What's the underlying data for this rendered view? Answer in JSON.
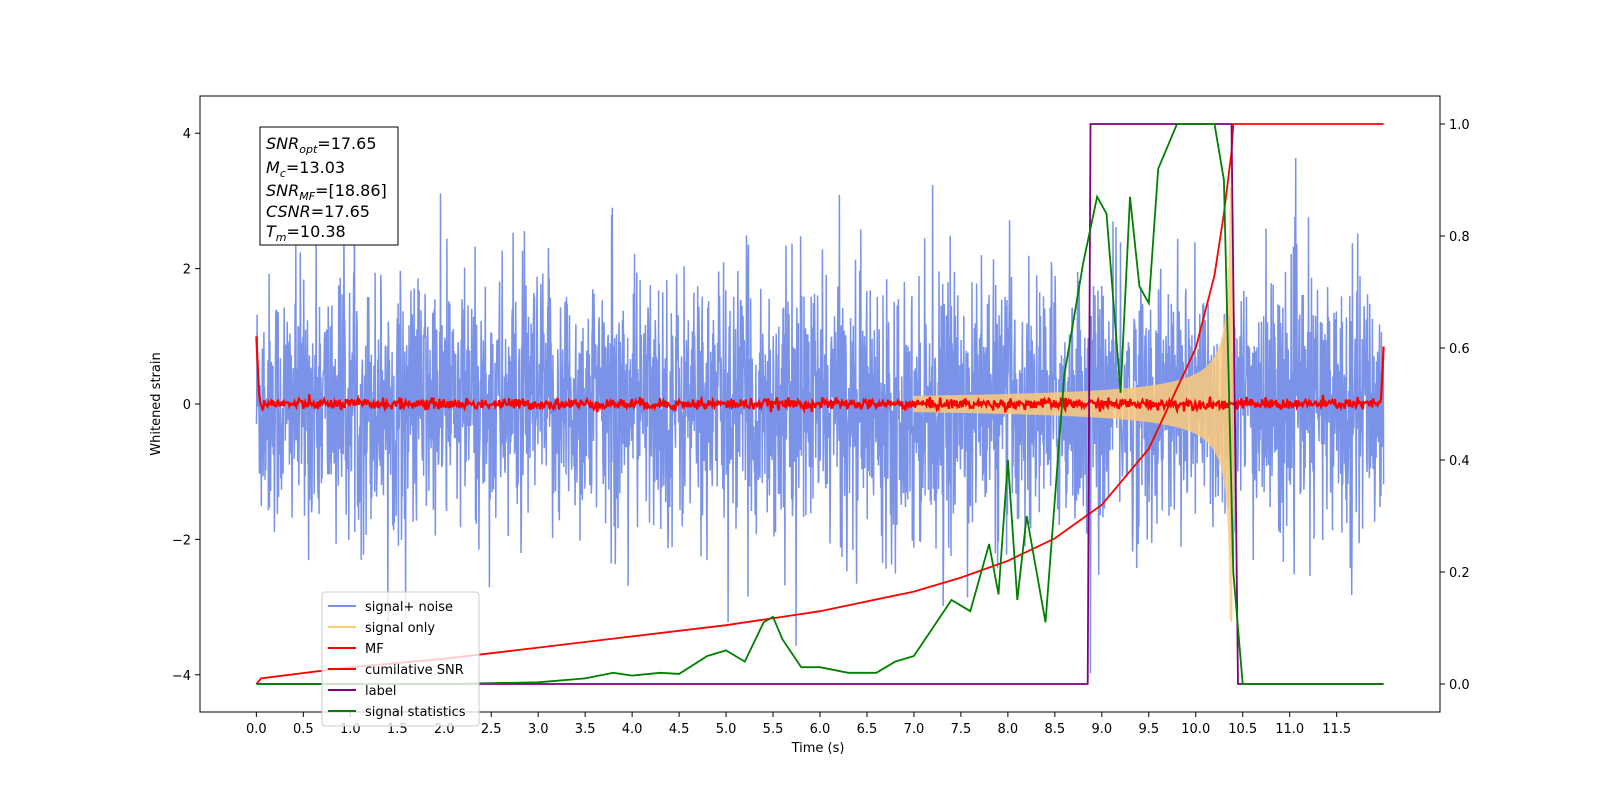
{
  "chart_data": {
    "type": "line",
    "xlabel": "Time (s)",
    "ylabel": "Whitened strain",
    "xlim": [
      -0.6,
      12.6
    ],
    "ylim_left": [
      -4.55,
      4.55
    ],
    "ylim_right": [
      -0.05,
      1.05
    ],
    "x_ticks": [
      "0.0",
      "0.5",
      "1.0",
      "1.5",
      "2.0",
      "2.5",
      "3.0",
      "3.5",
      "4.0",
      "4.5",
      "5.0",
      "5.5",
      "6.0",
      "6.5",
      "7.0",
      "7.5",
      "8.0",
      "8.5",
      "9.0",
      "9.5",
      "10.0",
      "10.5",
      "11.0",
      "11.5"
    ],
    "y_ticks_left": [
      "4",
      "2",
      "0",
      "−2",
      "−4"
    ],
    "y_ticks_right": [
      "1.0",
      "0.8",
      "0.6",
      "0.4",
      "0.2",
      "0.0"
    ],
    "stats_box": {
      "snr_opt": {
        "base": "SNR",
        "sub": "opt",
        "value": "=17.65"
      },
      "mc": {
        "base": "M",
        "sub": "c",
        "value": "=13.03"
      },
      "snr_mf": {
        "base": "SNR",
        "sub": "MF",
        "value": "=[18.86]"
      },
      "csnr": {
        "base": "CSNR",
        "sub": "",
        "value": "=17.65"
      },
      "tm": {
        "base": "T",
        "sub": "m",
        "value": "=10.38"
      }
    },
    "series": [
      {
        "name": "signal+ noise",
        "color": "#7a93e8",
        "axis": "left",
        "description": "noise band amplitude ~±2.5 with spikes",
        "x_range": [
          0,
          12.0
        ],
        "amplitude": 2.5
      },
      {
        "name": "signal only",
        "color": "#fdca7a",
        "axis": "left",
        "chirp_end": 10.38,
        "peak": 3.2
      },
      {
        "name": "MF",
        "color": "#ff0000",
        "axis": "left",
        "approx_level": 0.0
      },
      {
        "name": "cumilative SNR",
        "color": "#ff0000",
        "axis": "right",
        "x": [
          0,
          0.05,
          1,
          2,
          3,
          4,
          5,
          6,
          7,
          7.5,
          8,
          8.5,
          9,
          9.5,
          10,
          10.2,
          10.3,
          10.38,
          10.4,
          12.0
        ],
        "y": [
          0.0,
          0.01,
          0.03,
          0.045,
          0.065,
          0.085,
          0.105,
          0.13,
          0.165,
          0.19,
          0.22,
          0.26,
          0.32,
          0.42,
          0.6,
          0.73,
          0.84,
          0.95,
          1.0,
          1.0
        ]
      },
      {
        "name": "label",
        "color": "#800080",
        "axis": "right",
        "x": [
          0,
          8.85,
          8.88,
          10.38,
          10.45,
          12.0
        ],
        "y": [
          0.0,
          0.0,
          1.0,
          1.0,
          0.0,
          0.0
        ]
      },
      {
        "name": "signal statistics",
        "color": "#008000",
        "axis": "right",
        "x": [
          0,
          1,
          2,
          3,
          3.5,
          3.8,
          4.0,
          4.3,
          4.5,
          4.8,
          5.0,
          5.2,
          5.4,
          5.5,
          5.6,
          5.8,
          6.0,
          6.3,
          6.6,
          6.8,
          7.0,
          7.2,
          7.4,
          7.6,
          7.8,
          7.9,
          8.0,
          8.1,
          8.2,
          8.4,
          8.6,
          8.8,
          8.95,
          9.05,
          9.2,
          9.3,
          9.4,
          9.5,
          9.6,
          9.8,
          10.0,
          10.2,
          10.3,
          10.4,
          10.5,
          12.0
        ],
        "y": [
          0.0,
          0.0,
          0.0,
          0.003,
          0.01,
          0.02,
          0.015,
          0.02,
          0.018,
          0.05,
          0.06,
          0.04,
          0.11,
          0.12,
          0.08,
          0.03,
          0.03,
          0.02,
          0.02,
          0.04,
          0.05,
          0.1,
          0.15,
          0.13,
          0.25,
          0.16,
          0.4,
          0.15,
          0.3,
          0.11,
          0.55,
          0.75,
          0.87,
          0.84,
          0.52,
          0.87,
          0.71,
          0.68,
          0.92,
          1.0,
          1.0,
          1.0,
          0.9,
          0.2,
          0.0,
          0.0
        ]
      }
    ],
    "legend": {
      "placement": "lower-left",
      "entries": [
        {
          "label": "signal+ noise",
          "color": "#7a93e8"
        },
        {
          "label": "signal only",
          "color": "#fdca7a"
        },
        {
          "label": "MF",
          "color": "#ff0000"
        },
        {
          "label": "cumilative SNR",
          "color": "#ff0000"
        },
        {
          "label": "label",
          "color": "#800080"
        },
        {
          "label": "signal statistics",
          "color": "#008000"
        }
      ]
    }
  }
}
